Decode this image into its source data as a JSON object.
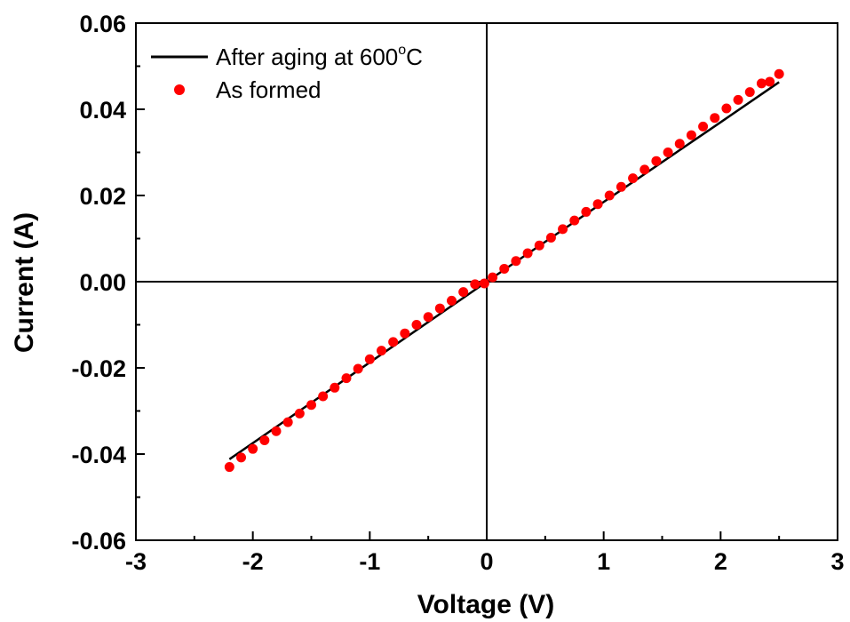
{
  "chart_data": {
    "type": "scatter",
    "title": "",
    "xlabel": "Voltage (V)",
    "ylabel": "Current (A)",
    "xlim": [
      -3,
      3
    ],
    "ylim": [
      -0.06,
      0.06
    ],
    "xticks": [
      -3,
      -2,
      -1,
      0,
      1,
      2,
      3
    ],
    "xtick_labels": [
      "-3",
      "-2",
      "-1",
      "0",
      "1",
      "2",
      "3"
    ],
    "yticks": [
      -0.06,
      -0.04,
      -0.02,
      0.0,
      0.02,
      0.04,
      0.06
    ],
    "ytick_labels": [
      "-0.06",
      "-0.04",
      "-0.02",
      "0.00",
      "0.02",
      "0.04",
      "0.06"
    ],
    "grid": false,
    "legend_position": "top-left",
    "series": [
      {
        "name": "After aging at 600°C",
        "legend_main": "After aging at 600",
        "legend_sup": "o",
        "legend_tail": "C",
        "style": "line",
        "color": "#000000",
        "x": [
          -2.2,
          0,
          2.0,
          2.5
        ],
        "y": [
          -0.0412,
          0,
          0.037,
          0.0463
        ]
      },
      {
        "name": "As formed",
        "style": "markers",
        "color": "#ff0000",
        "x": [
          -2.2,
          -2.1,
          -2.0,
          -1.9,
          -1.8,
          -1.7,
          -1.6,
          -1.5,
          -1.4,
          -1.3,
          -1.2,
          -1.1,
          -1.0,
          -0.9,
          -0.8,
          -0.7,
          -0.6,
          -0.5,
          -0.4,
          -0.3,
          -0.2,
          -0.1,
          -0.02,
          0.05,
          0.15,
          0.25,
          0.35,
          0.45,
          0.55,
          0.65,
          0.75,
          0.85,
          0.95,
          1.05,
          1.15,
          1.25,
          1.35,
          1.45,
          1.55,
          1.65,
          1.75,
          1.85,
          1.95,
          2.05,
          2.15,
          2.25,
          2.35,
          2.42,
          2.5
        ],
        "y": [
          -0.043,
          -0.0408,
          -0.0388,
          -0.0368,
          -0.0347,
          -0.0326,
          -0.0306,
          -0.0286,
          -0.0266,
          -0.0246,
          -0.0224,
          -0.0202,
          -0.018,
          -0.016,
          -0.014,
          -0.012,
          -0.01,
          -0.0082,
          -0.0062,
          -0.0044,
          -0.0024,
          -0.0006,
          -0.0004,
          0.001,
          0.003,
          0.0048,
          0.0066,
          0.0084,
          0.0102,
          0.0122,
          0.0142,
          0.0162,
          0.018,
          0.02,
          0.022,
          0.024,
          0.026,
          0.028,
          0.03,
          0.032,
          0.034,
          0.036,
          0.038,
          0.0402,
          0.0422,
          0.044,
          0.046,
          0.0464,
          0.0482
        ]
      }
    ]
  }
}
